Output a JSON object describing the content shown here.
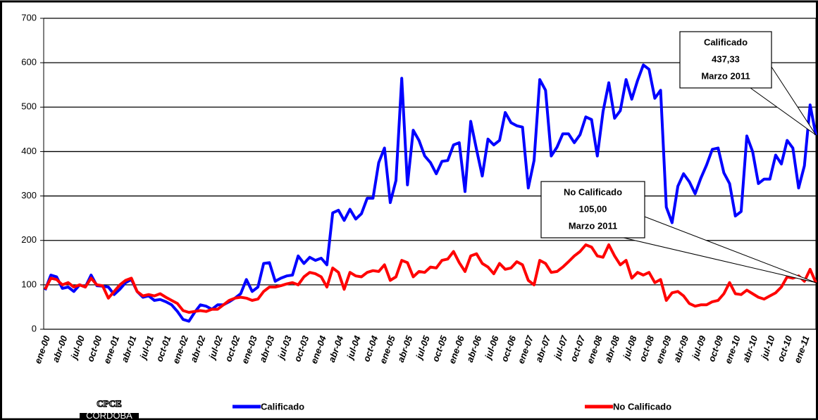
{
  "chart_data": {
    "type": "line",
    "categories": [
      "ene-00",
      null,
      null,
      "abr-00",
      null,
      null,
      "jul-00",
      null,
      null,
      "oct-00",
      null,
      null,
      "ene-01",
      null,
      null,
      "abr-01",
      null,
      null,
      "jul-01",
      null,
      null,
      "oct-01",
      null,
      null,
      "ene-02",
      null,
      null,
      "abr-02",
      null,
      null,
      "jul-02",
      null,
      null,
      "oct-02",
      null,
      null,
      "ene-03",
      null,
      null,
      "abr-03",
      null,
      null,
      "jul-03",
      null,
      null,
      "oct-03",
      null,
      null,
      "ene-04",
      null,
      null,
      "abr-04",
      null,
      null,
      "jul-04",
      null,
      null,
      "oct-04",
      null,
      null,
      "ene-05",
      null,
      null,
      "abr-05",
      null,
      null,
      "jul-05",
      null,
      null,
      "oct-05",
      null,
      null,
      "ene-06",
      null,
      null,
      "abr-06",
      null,
      null,
      "jul-06",
      null,
      null,
      "oct-06",
      null,
      null,
      "ene-07",
      null,
      null,
      "abr-07",
      null,
      null,
      "jul-07",
      null,
      null,
      "oct-07",
      null,
      null,
      "ene-08",
      null,
      null,
      "abr-08",
      null,
      null,
      "jul-08",
      null,
      null,
      "oct-08",
      null,
      null,
      "ene-09",
      null,
      null,
      "abr-09",
      null,
      null,
      "jul-09",
      null,
      null,
      "oct-09",
      null,
      null,
      "ene-10",
      null,
      null,
      "abr-10",
      null,
      null,
      "jul-10",
      null,
      null,
      "oct-10",
      null,
      null,
      "ene-11",
      null,
      null
    ],
    "series": [
      {
        "name": "Calificado",
        "color": "#0000ff",
        "values": [
          88,
          122,
          118,
          92,
          95,
          85,
          100,
          95,
          122,
          98,
          97,
          95,
          78,
          90,
          105,
          112,
          85,
          72,
          75,
          65,
          67,
          62,
          55,
          40,
          22,
          18,
          38,
          55,
          52,
          45,
          55,
          55,
          62,
          70,
          80,
          112,
          85,
          95,
          148,
          150,
          108,
          115,
          120,
          122,
          165,
          148,
          162,
          155,
          160,
          145,
          262,
          268,
          245,
          270,
          248,
          260,
          295,
          295,
          375,
          408,
          285,
          335,
          565,
          325,
          448,
          425,
          390,
          375,
          350,
          378,
          380,
          415,
          420,
          310,
          468,
          405,
          345,
          428,
          415,
          425,
          488,
          465,
          458,
          455,
          318,
          380,
          562,
          538,
          390,
          410,
          440,
          440,
          420,
          438,
          478,
          472,
          390,
          490,
          555,
          475,
          492,
          562,
          518,
          560,
          595,
          585,
          520,
          538,
          275,
          240,
          322,
          350,
          332,
          305,
          340,
          370,
          405,
          408,
          352,
          328,
          255,
          265,
          435,
          400,
          328,
          338,
          338,
          392,
          372,
          425,
          408,
          318,
          368,
          505,
          437.33
        ]
      },
      {
        "name": "No Calificado",
        "color": "#ff0000",
        "values": [
          90,
          115,
          112,
          100,
          105,
          95,
          100,
          95,
          115,
          100,
          98,
          70,
          85,
          100,
          110,
          115,
          85,
          75,
          78,
          75,
          80,
          72,
          65,
          58,
          42,
          38,
          40,
          42,
          40,
          45,
          45,
          55,
          65,
          70,
          72,
          70,
          65,
          68,
          85,
          95,
          95,
          98,
          102,
          105,
          100,
          118,
          128,
          125,
          118,
          95,
          138,
          128,
          90,
          128,
          120,
          118,
          128,
          132,
          130,
          145,
          110,
          118,
          155,
          150,
          118,
          130,
          128,
          140,
          138,
          155,
          158,
          175,
          150,
          130,
          165,
          170,
          148,
          140,
          125,
          148,
          135,
          138,
          152,
          145,
          110,
          100,
          155,
          148,
          128,
          130,
          140,
          152,
          165,
          175,
          190,
          185,
          165,
          162,
          190,
          165,
          145,
          155,
          115,
          128,
          122,
          128,
          105,
          112,
          65,
          82,
          85,
          75,
          58,
          52,
          55,
          55,
          62,
          65,
          80,
          105,
          80,
          78,
          88,
          80,
          72,
          68,
          75,
          82,
          95,
          118,
          115,
          120,
          108,
          135,
          105
        ]
      }
    ],
    "ylim": [
      0,
      700
    ],
    "yticks": [
      0,
      100,
      200,
      300,
      400,
      500,
      600,
      700
    ],
    "grid": true,
    "annotations": [
      {
        "series": 0,
        "lines": [
          "Calificado",
          "437,33",
          "Marzo 2011"
        ]
      },
      {
        "series": 1,
        "lines": [
          "No Calificado",
          "105,00",
          "Marzo 2011"
        ]
      }
    ],
    "logo": {
      "name": "CPCE",
      "sub": "CORDOBA"
    }
  }
}
